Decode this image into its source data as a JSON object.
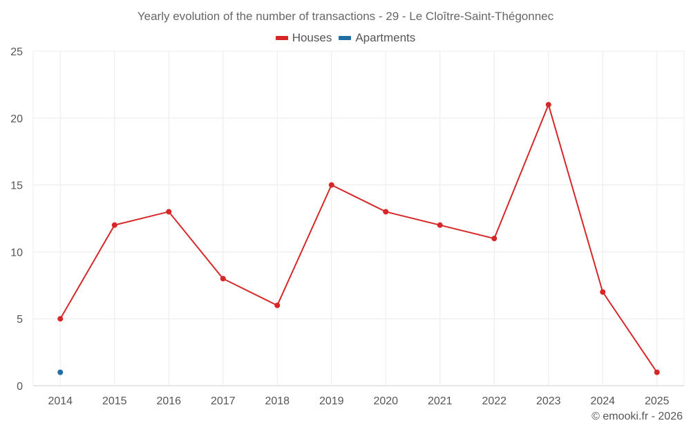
{
  "chart_data": {
    "type": "line",
    "title": "Yearly evolution of the number of transactions - 29 - Le Cloître-Saint-Thégonnec",
    "xlabel": "",
    "ylabel": "",
    "categories": [
      "2014",
      "2015",
      "2016",
      "2017",
      "2018",
      "2019",
      "2020",
      "2021",
      "2022",
      "2023",
      "2024",
      "2025"
    ],
    "series": [
      {
        "name": "Houses",
        "color": "#d62728",
        "values": [
          5,
          12,
          13,
          8,
          6,
          15,
          13,
          12,
          11,
          21,
          7,
          1
        ]
      },
      {
        "name": "Apartments",
        "color": "#1f6fa5",
        "values": [
          1,
          null,
          null,
          null,
          null,
          null,
          null,
          null,
          null,
          null,
          null,
          null
        ]
      }
    ],
    "ylim": [
      0,
      25
    ],
    "yticks": [
      "0",
      "5",
      "10",
      "15",
      "20",
      "25"
    ],
    "grid": true,
    "legend_position": "top-center"
  },
  "footer": {
    "copyright": "© emooki.fr - 2026"
  }
}
